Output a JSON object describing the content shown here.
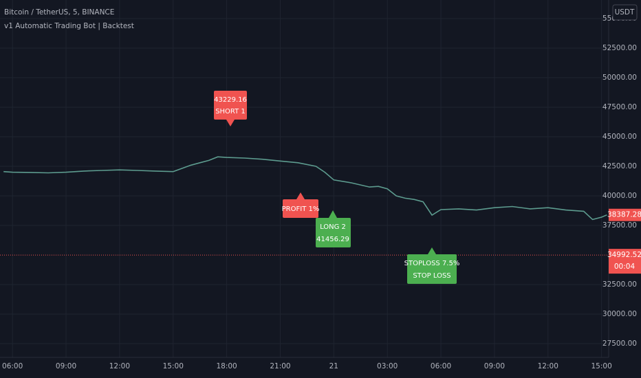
{
  "chart_data": {
    "type": "line",
    "title": "Bitcoin / TetherUS, 5, BINANCE",
    "subtitle": "v1 Automatic Trading Bot | Backtest",
    "currency": "USDT",
    "color": "#5d9c8f",
    "x": [
      -0.5,
      0,
      1,
      2,
      3,
      4,
      5,
      6,
      7,
      8,
      9,
      10,
      10.5,
      11,
      11.5,
      12,
      13,
      14,
      15,
      16,
      17,
      17.5,
      18,
      19,
      20,
      20.5,
      21,
      21.5,
      22,
      22.5,
      23,
      23.5,
      24,
      25,
      26,
      27,
      28,
      29,
      30,
      31,
      32,
      32.5,
      33,
      33.3
    ],
    "values": [
      42050,
      42000,
      41980,
      41950,
      42000,
      42100,
      42150,
      42200,
      42150,
      42100,
      42050,
      42600,
      42800,
      43000,
      43300,
      43250,
      43200,
      43100,
      42950,
      42800,
      42500,
      42000,
      41350,
      41100,
      40750,
      40800,
      40600,
      40000,
      39800,
      39700,
      39500,
      38370,
      38840,
      38900,
      38800,
      39000,
      39100,
      38900,
      39000,
      38800,
      38700,
      38000,
      38200,
      38387.28
    ],
    "xlim": [
      -0.7,
      33.4
    ],
    "ylim": [
      26337,
      56570
    ],
    "grid": true,
    "xticks": [
      {
        "value": 0,
        "label": "06:00"
      },
      {
        "value": 3,
        "label": "09:00"
      },
      {
        "value": 6,
        "label": "12:00"
      },
      {
        "value": 9,
        "label": "15:00"
      },
      {
        "value": 12,
        "label": "18:00"
      },
      {
        "value": 15,
        "label": "21:00"
      },
      {
        "value": 18,
        "label": "21"
      },
      {
        "value": 21,
        "label": "03:00"
      },
      {
        "value": 24,
        "label": "06:00"
      },
      {
        "value": 27,
        "label": "09:00"
      },
      {
        "value": 30,
        "label": "12:00"
      },
      {
        "value": 33,
        "label": "15:00"
      }
    ],
    "yticks": [
      {
        "value": 55000,
        "label": "55000.00"
      },
      {
        "value": 52500,
        "label": "52500.00"
      },
      {
        "value": 50000,
        "label": "50000.00"
      },
      {
        "value": 47500,
        "label": "47500.00"
      },
      {
        "value": 45000,
        "label": "45000.00"
      },
      {
        "value": 42500,
        "label": "42500.00"
      },
      {
        "value": 40000,
        "label": "40000.00"
      },
      {
        "value": 37500,
        "label": "37500.00"
      },
      {
        "value": 32500,
        "label": "32500.00"
      },
      {
        "value": 30000,
        "label": "30000.00"
      },
      {
        "value": 27500,
        "label": "27500.00"
      }
    ],
    "last_price": 38387.28,
    "stop_price": 34992.52,
    "countdown": "00:04",
    "annotations": {
      "short": [
        "43229.16",
        "SHORT 1"
      ],
      "profit": "PROFIT 1%",
      "long": [
        "LONG 2",
        "41456.29"
      ],
      "stoploss": [
        "STOPLOSS 7.5%",
        "STOP LOSS"
      ]
    }
  }
}
